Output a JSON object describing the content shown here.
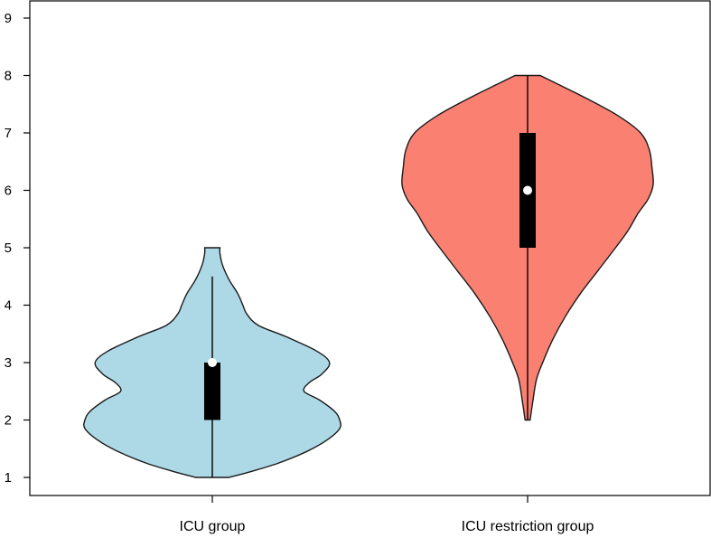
{
  "chart_data": {
    "type": "violin",
    "title": "",
    "xlabel": "",
    "ylabel": "",
    "ylim": [
      0.7,
      9.3
    ],
    "y_ticks": [
      1,
      2,
      3,
      4,
      5,
      6,
      7,
      8,
      9
    ],
    "grid": false,
    "categories": [
      "ICU group",
      "ICU restriction group"
    ],
    "series": [
      {
        "category": "ICU group",
        "color": "#add8e6",
        "min": 1,
        "q1": 2,
        "median": 3,
        "q3": 3,
        "whisker_high": 4.5,
        "max": 5,
        "density_profile": [
          [
            1.0,
            0.13
          ],
          [
            1.1,
            0.3
          ],
          [
            1.25,
            0.52
          ],
          [
            1.45,
            0.74
          ],
          [
            1.65,
            0.9
          ],
          [
            1.85,
            1.0
          ],
          [
            2.0,
            1.0
          ],
          [
            2.15,
            0.96
          ],
          [
            2.35,
            0.84
          ],
          [
            2.5,
            0.72
          ],
          [
            2.65,
            0.76
          ],
          [
            2.8,
            0.86
          ],
          [
            3.0,
            0.92
          ],
          [
            3.2,
            0.82
          ],
          [
            3.45,
            0.58
          ],
          [
            3.65,
            0.36
          ],
          [
            3.85,
            0.27
          ],
          [
            4.0,
            0.24
          ],
          [
            4.2,
            0.2
          ],
          [
            4.45,
            0.13
          ],
          [
            4.7,
            0.08
          ],
          [
            4.9,
            0.06
          ],
          [
            5.0,
            0.06
          ]
        ]
      },
      {
        "category": "ICU restriction group",
        "color": "#fa8072",
        "min": 2,
        "q1": 5,
        "median": 6,
        "q3": 7,
        "whisker_high": 8,
        "max": 8,
        "density_profile": [
          [
            2.0,
            0.02
          ],
          [
            2.3,
            0.04
          ],
          [
            2.7,
            0.07
          ],
          [
            3.0,
            0.12
          ],
          [
            3.4,
            0.2
          ],
          [
            3.8,
            0.3
          ],
          [
            4.2,
            0.42
          ],
          [
            4.6,
            0.56
          ],
          [
            5.0,
            0.7
          ],
          [
            5.3,
            0.8
          ],
          [
            5.6,
            0.88
          ],
          [
            5.85,
            0.96
          ],
          [
            6.1,
            1.0
          ],
          [
            6.4,
            0.99
          ],
          [
            6.7,
            0.97
          ],
          [
            7.0,
            0.9
          ],
          [
            7.3,
            0.72
          ],
          [
            7.6,
            0.47
          ],
          [
            7.85,
            0.24
          ],
          [
            8.0,
            0.1
          ]
        ]
      }
    ]
  }
}
